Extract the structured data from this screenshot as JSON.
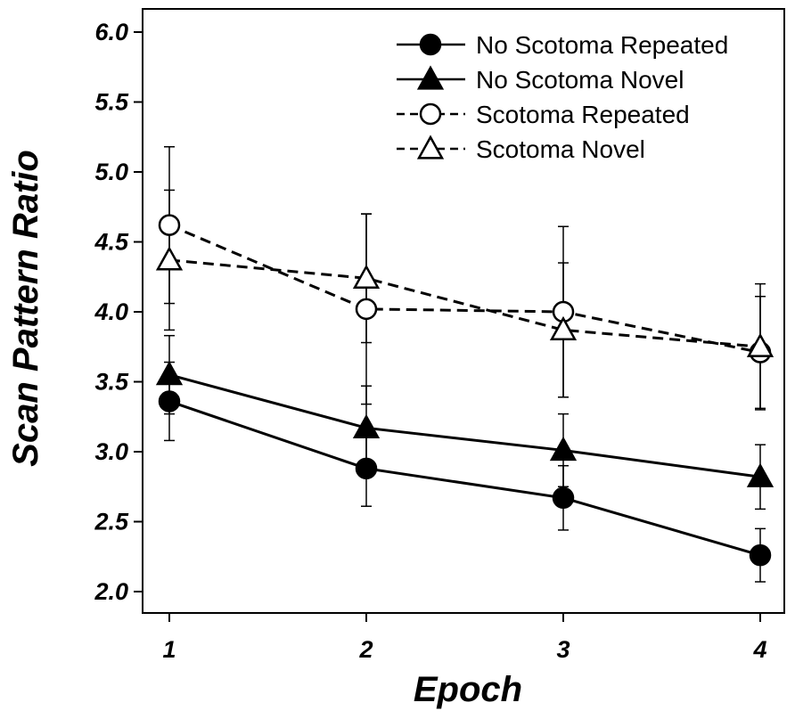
{
  "chart_data": {
    "type": "line",
    "xlabel": "Epoch",
    "ylabel": "Scan Pattern Ratio",
    "x": [
      1,
      2,
      3,
      4
    ],
    "x_tick_labels": [
      "1",
      "2",
      "3",
      "4"
    ],
    "ylim": [
      2.0,
      6.0
    ],
    "y_ticks": [
      2.0,
      2.5,
      3.0,
      3.5,
      4.0,
      4.5,
      5.0,
      5.5,
      6.0
    ],
    "y_tick_labels": [
      "2.0",
      "2.5",
      "3.0",
      "3.5",
      "4.0",
      "4.5",
      "5.0",
      "5.5",
      "6.0"
    ],
    "grid": false,
    "legend_position": "top-right",
    "series": [
      {
        "name": "No Scotoma Repeated",
        "marker": "circle",
        "filled": true,
        "dashed": false,
        "values": [
          3.36,
          2.88,
          2.67,
          2.26
        ],
        "error": [
          0.28,
          0.27,
          0.23,
          0.19
        ]
      },
      {
        "name": "No Scotoma Novel",
        "marker": "triangle",
        "filled": true,
        "dashed": false,
        "values": [
          3.55,
          3.17,
          3.01,
          2.82
        ],
        "error": [
          0.28,
          0.3,
          0.26,
          0.23
        ]
      },
      {
        "name": "Scotoma Repeated",
        "marker": "circle",
        "filled": false,
        "dashed": true,
        "values": [
          4.62,
          4.02,
          4.0,
          3.71
        ],
        "error": [
          0.56,
          0.68,
          0.61,
          0.4
        ]
      },
      {
        "name": "Scotoma Novel",
        "marker": "triangle",
        "filled": false,
        "dashed": true,
        "values": [
          4.37,
          4.24,
          3.87,
          3.75
        ],
        "error": [
          0.5,
          0.46,
          0.48,
          0.45
        ]
      }
    ]
  }
}
